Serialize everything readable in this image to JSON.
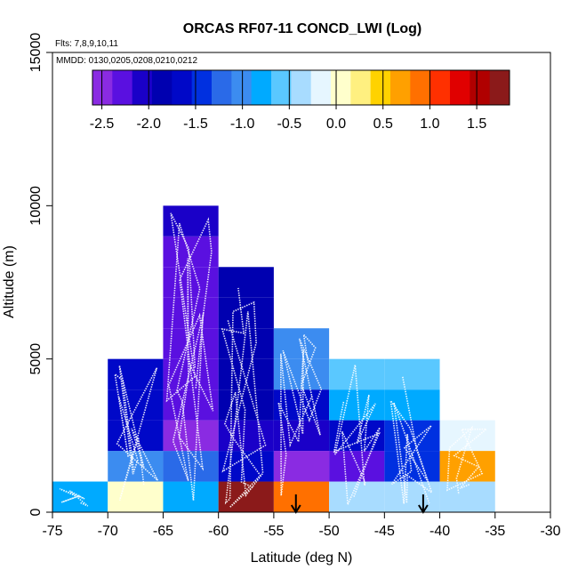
{
  "chart_data": {
    "type": "heatmap",
    "title": "ORCAS RF07-11 CONCD_LWI (Log)",
    "flights_label": "Flts: 7,8,9,10,11",
    "dates_label": "MMDD: 0130,0205,0208,0210,0212",
    "xlabel": "Latitude (deg N)",
    "ylabel": "Altitude (m)",
    "xlim": [
      -75,
      -30
    ],
    "ylim": [
      0,
      15000
    ],
    "x_ticks": [
      -75,
      -70,
      -65,
      -60,
      -55,
      -50,
      -45,
      -40,
      -35,
      -30
    ],
    "x_tick_labels": [
      "-75",
      "-70",
      "-65",
      "-60",
      "-55",
      "-50",
      "-45",
      "-40",
      "-35",
      "-30"
    ],
    "y_ticks": [
      0,
      5000,
      10000,
      15000
    ],
    "y_tick_labels": [
      "0",
      "5000",
      "10000",
      "15000"
    ],
    "colorbar": {
      "range": [
        -2.6,
        1.85
      ],
      "ticks": [
        -2.5,
        -2.0,
        -1.5,
        -1.0,
        -0.5,
        0.0,
        0.5,
        1.0,
        1.5
      ],
      "tick_labels": [
        "-2.5",
        "-2.0",
        "-1.5",
        "-1.0",
        "-0.5",
        "0.0",
        "0.5",
        "1.0",
        "1.5"
      ],
      "colors": [
        "#8a2be2",
        "#5a10e0",
        "#1a00c8",
        "#0000b0",
        "#0008c8",
        "#0030e0",
        "#2a6ae8",
        "#3c8cf0",
        "#00aaff",
        "#5ac8ff",
        "#a8dcff",
        "#e6f6ff",
        "#ffffcc",
        "#fff080",
        "#ffd200",
        "#ffa000",
        "#ff7000",
        "#ff3000",
        "#e00000",
        "#b00000",
        "#8b1a1a"
      ]
    },
    "cells": [
      {
        "lat": -75,
        "alt": 0,
        "value": -0.9
      },
      {
        "lat": -70,
        "alt": 0,
        "value": 0.0
      },
      {
        "lat": -65,
        "alt": 0,
        "value": -0.9
      },
      {
        "lat": -60,
        "alt": 0,
        "value": 1.7
      },
      {
        "lat": -55,
        "alt": 0,
        "value": 0.85
      },
      {
        "lat": -50,
        "alt": 0,
        "value": -0.3
      },
      {
        "lat": -45,
        "alt": 0,
        "value": -0.4
      },
      {
        "lat": -40,
        "alt": 0,
        "value": -0.4
      },
      {
        "lat": -70,
        "alt": 1000,
        "value": -1.1
      },
      {
        "lat": -65,
        "alt": 1000,
        "value": -1.3
      },
      {
        "lat": -60,
        "alt": 1000,
        "value": -1.6
      },
      {
        "lat": -55,
        "alt": 1000,
        "value": -2.6
      },
      {
        "lat": -50,
        "alt": 1000,
        "value": -2.2
      },
      {
        "lat": -45,
        "alt": 1000,
        "value": -1.4
      },
      {
        "lat": -40,
        "alt": 1000,
        "value": 0.6
      },
      {
        "lat": -70,
        "alt": 2000,
        "value": -1.6
      },
      {
        "lat": -65,
        "alt": 2000,
        "value": -2.6
      },
      {
        "lat": -60,
        "alt": 2000,
        "value": -2.0
      },
      {
        "lat": -55,
        "alt": 2000,
        "value": -2.0
      },
      {
        "lat": -50,
        "alt": 2000,
        "value": -1.6
      },
      {
        "lat": -45,
        "alt": 2000,
        "value": -1.4
      },
      {
        "lat": -40,
        "alt": 2000,
        "value": -0.1
      },
      {
        "lat": -70,
        "alt": 3000,
        "value": -1.6
      },
      {
        "lat": -65,
        "alt": 3000,
        "value": -2.2
      },
      {
        "lat": -60,
        "alt": 3000,
        "value": -1.9
      },
      {
        "lat": -55,
        "alt": 3000,
        "value": -1.6
      },
      {
        "lat": -50,
        "alt": 3000,
        "value": -0.7
      },
      {
        "lat": -45,
        "alt": 3000,
        "value": -0.7
      },
      {
        "lat": -70,
        "alt": 4000,
        "value": -1.6
      },
      {
        "lat": -65,
        "alt": 4000,
        "value": -2.2
      },
      {
        "lat": -60,
        "alt": 4000,
        "value": -1.9
      },
      {
        "lat": -55,
        "alt": 4000,
        "value": -1.1
      },
      {
        "lat": -50,
        "alt": 4000,
        "value": -0.6
      },
      {
        "lat": -45,
        "alt": 4000,
        "value": -0.6
      },
      {
        "lat": -65,
        "alt": 5000,
        "value": -2.2
      },
      {
        "lat": -60,
        "alt": 5000,
        "value": -1.9
      },
      {
        "lat": -55,
        "alt": 5000,
        "value": -1.1
      },
      {
        "lat": -65,
        "alt": 6000,
        "value": -2.2
      },
      {
        "lat": -60,
        "alt": 6000,
        "value": -1.9
      },
      {
        "lat": -65,
        "alt": 7000,
        "value": -2.3
      },
      {
        "lat": -60,
        "alt": 7000,
        "value": -1.8
      },
      {
        "lat": -65,
        "alt": 8000,
        "value": -2.2
      },
      {
        "lat": -65,
        "alt": 9000,
        "value": -2.15
      }
    ],
    "cell_size": {
      "lat": 5,
      "alt": 1000
    },
    "arrows_lat": [
      -53,
      -41.5
    ]
  }
}
